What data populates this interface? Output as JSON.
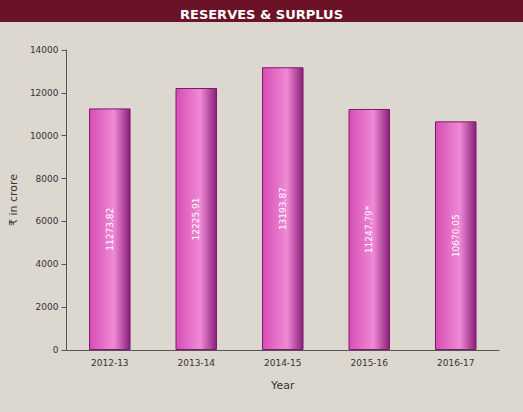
{
  "chart_data": {
    "type": "bar",
    "title": "RESERVES & SURPLUS",
    "x_label": "Year",
    "y_label": "₹ in crore",
    "categories": [
      "2012-13",
      "2013-14",
      "2014-15",
      "2015-16",
      "2016-17"
    ],
    "values": [
      11273.82,
      12225.91,
      13193.87,
      11247.79,
      10670.05
    ],
    "value_labels": [
      "11273.82",
      "12225.91",
      "13193.87",
      "11247.79*",
      "10670.05"
    ],
    "color": "#d64db4",
    "ylim": [
      0,
      14000
    ],
    "yticks": [
      0,
      2000,
      4000,
      6000,
      8000,
      10000,
      12000,
      14000
    ],
    "grid": false,
    "data_labels": true
  }
}
